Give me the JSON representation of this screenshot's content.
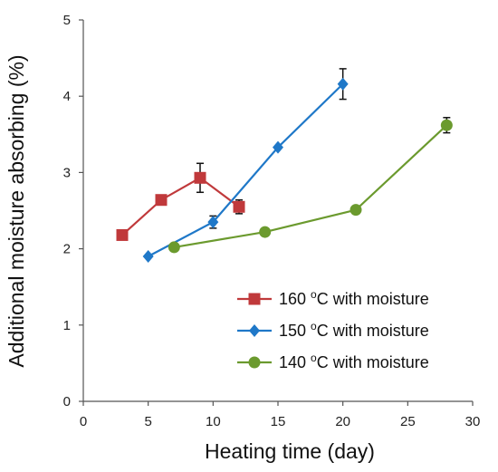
{
  "chart_data": {
    "type": "line",
    "xlabel": "Heating time (day)",
    "ylabel": "Additional moisture absorbing (%)",
    "xlim": [
      0,
      30
    ],
    "ylim": [
      0,
      5
    ],
    "xticks": [
      "0",
      "5",
      "10",
      "15",
      "20",
      "25",
      "30"
    ],
    "yticks": [
      "0",
      "1",
      "2",
      "3",
      "4",
      "5"
    ],
    "grid": false,
    "legend_position": "bottom-right",
    "series": [
      {
        "name": "160 oC with moisture",
        "name_parts": {
          "number": "160 ",
          "sup": "o",
          "rest": "C with moisture"
        },
        "color": "#c0393b",
        "marker": "square",
        "points": [
          {
            "x": 3,
            "y": 2.18
          },
          {
            "x": 6,
            "y": 2.64
          },
          {
            "x": 9,
            "y": 2.93,
            "err": 0.19
          },
          {
            "x": 12,
            "y": 2.55,
            "err": 0.09
          }
        ]
      },
      {
        "name": "150 oC with moisture",
        "name_parts": {
          "number": "150 ",
          "sup": "o",
          "rest": "C with moisture"
        },
        "color": "#1f78c8",
        "marker": "diamond",
        "points": [
          {
            "x": 5,
            "y": 1.9
          },
          {
            "x": 10,
            "y": 2.35,
            "err": 0.08
          },
          {
            "x": 15,
            "y": 3.33
          },
          {
            "x": 20,
            "y": 4.16,
            "err": 0.2
          }
        ]
      },
      {
        "name": "140 oC with moisture",
        "name_parts": {
          "number": "140 ",
          "sup": "o",
          "rest": "C with moisture"
        },
        "color": "#6b9a2e",
        "marker": "circle",
        "points": [
          {
            "x": 7,
            "y": 2.02
          },
          {
            "x": 14,
            "y": 2.22
          },
          {
            "x": 21,
            "y": 2.51
          },
          {
            "x": 28,
            "y": 3.62,
            "err": 0.1
          }
        ]
      }
    ]
  }
}
